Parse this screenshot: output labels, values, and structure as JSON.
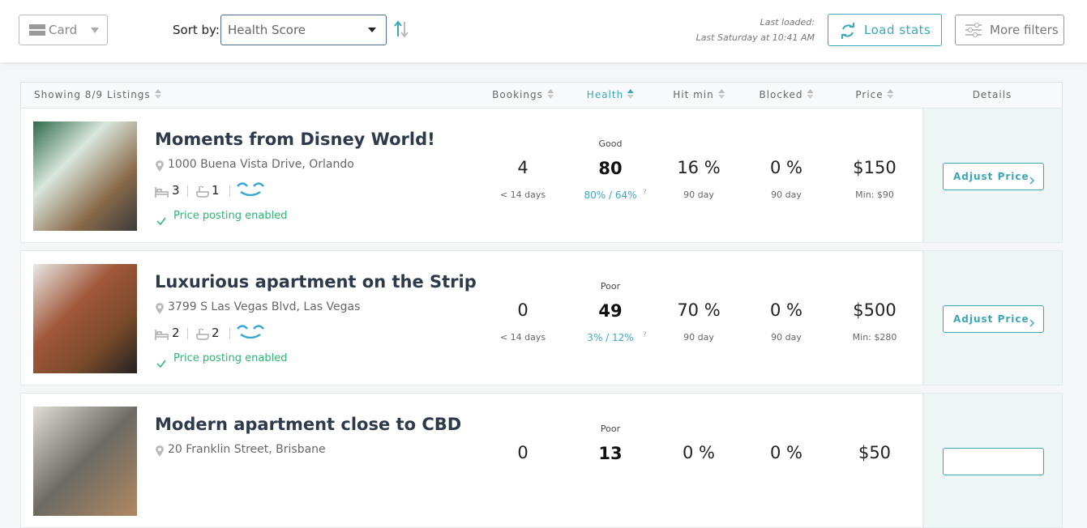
{
  "toolbar": {
    "view": "Card",
    "sort_label": "Sort by:",
    "sort_value": "Health Score",
    "last_loaded_label": "Last loaded:",
    "last_loaded_value": "Last Saturday at 10:41 AM",
    "load_button": "Load stats",
    "filters_button": "More filters"
  },
  "table": {
    "columns": [
      "Showing 8/9 Listings",
      "Bookings",
      "Health",
      "Hit min",
      "Blocked",
      "Price",
      "Details"
    ],
    "rows": [
      {
        "title": "Moments from Disney World!",
        "address": "1000 Buena Vista Drive, Orlando",
        "beds": "3",
        "baths": "1",
        "status": "Price posting enabled",
        "bookings": "4",
        "bookings_note": "< 14 days",
        "health_label": "Good",
        "health": "80",
        "health_detail": "80% / 64%",
        "help": "?",
        "hit_min": "16 %",
        "hit_min_note": "90 day",
        "blocked": "0 %",
        "blocked_note": "90 day",
        "price": "$150",
        "min_price": "Min: $90",
        "button": "Adjust Price"
      },
      {
        "title": "Luxurious apartment on the Strip",
        "address": "3799 S Las Vegas Blvd, Las Vegas",
        "beds": "2",
        "baths": "2",
        "status": "Price posting enabled",
        "bookings": "0",
        "bookings_note": "< 14 days",
        "health_label": "Poor",
        "health": "49",
        "health_detail": "3% / 12%",
        "help": "?",
        "hit_min": "70 %",
        "hit_min_note": "90 day",
        "blocked": "0 %",
        "blocked_note": "90 day",
        "price": "$500",
        "min_price": "Min: $280",
        "button": "Adjust Price"
      },
      {
        "title": "Modern apartment close to CBD",
        "address": "20 Franklin Street, Brisbane",
        "health_label": "Poor",
        "bookings": "0",
        "health": "13",
        "hit_min": "0 %",
        "blocked": "0 %",
        "price": "$50"
      }
    ]
  }
}
